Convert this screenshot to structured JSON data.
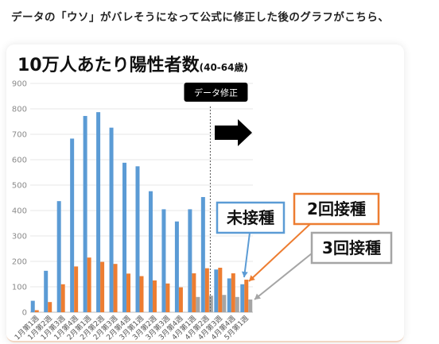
{
  "caption": "データの「ウソ」がバレそうになって公式に修正した後のグラフがこちら、",
  "chart_data": {
    "type": "bar",
    "title": "10万人あたり陽性者数",
    "subtitle": "(40-64歳)",
    "ylim": [
      0,
      900
    ],
    "yticks": [
      0,
      100,
      200,
      300,
      400,
      500,
      600,
      700,
      800,
      900
    ],
    "grid": true,
    "categories": [
      "1月第1週",
      "1月第2週",
      "1月第3週",
      "1月第4週",
      "2月第1週",
      "2月第2週",
      "2月第3週",
      "2月第4週",
      "3月第1週",
      "3月第2週",
      "3月第3週",
      "3月第4週",
      "4月第1週",
      "4月第2週",
      "4月第3週",
      "4月第4週",
      "5月第1週"
    ],
    "series": [
      {
        "name": "未接種",
        "color": "#5b9bd5",
        "values": [
          45,
          163,
          437,
          683,
          772,
          787,
          726,
          588,
          574,
          476,
          405,
          357,
          405,
          453,
          168,
          133,
          110
        ]
      },
      {
        "name": "2回接種",
        "color": "#ed7d31",
        "values": [
          8,
          40,
          110,
          180,
          215,
          198,
          190,
          152,
          142,
          125,
          113,
          98,
          153,
          173,
          175,
          153,
          128
        ]
      },
      {
        "name": "3回接種",
        "color": "#a5a5a5",
        "values": [
          0,
          0,
          0,
          0,
          0,
          0,
          0,
          0,
          0,
          0,
          0,
          0,
          60,
          65,
          68,
          60,
          50
        ]
      }
    ],
    "annotation": "データ修正",
    "revision_after_index": 13
  }
}
